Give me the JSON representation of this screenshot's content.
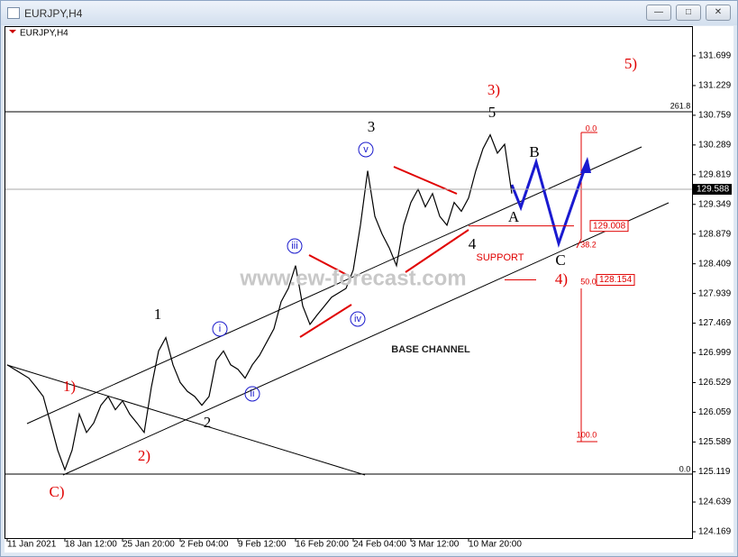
{
  "window_title": "EURJPY,H4",
  "chart_data": {
    "type": "line",
    "symbol": "EURJPY,H4",
    "color": "#000000",
    "categories": [
      "11 Jan 2021",
      null,
      null,
      null,
      null,
      null,
      null,
      null,
      "18 Jan 12:00",
      null,
      null,
      null,
      null,
      null,
      null,
      null,
      "25 Jan 20:00",
      null,
      null,
      null,
      null,
      null,
      null,
      null,
      "2 Feb 04:00",
      null,
      null,
      null,
      null,
      null,
      null,
      null,
      "9 Feb 12:00",
      null,
      null,
      null,
      null,
      null,
      null,
      null,
      "16 Feb 20:00",
      null,
      null,
      null,
      null,
      null,
      null,
      null,
      "24 Feb 04:00",
      null,
      null,
      null,
      null,
      null,
      null,
      null,
      "3 Mar 12:00",
      null,
      null,
      null,
      null,
      null,
      null,
      null,
      "10 Mar 20:00",
      null,
      null,
      null,
      null,
      null,
      null,
      null,
      null,
      null,
      null,
      null,
      null,
      null,
      null,
      null,
      null,
      null,
      null,
      null,
      null,
      null,
      null,
      null,
      null,
      null,
      null,
      null,
      null,
      null,
      null,
      null
    ],
    "values": [
      126.81,
      126.74,
      126.67,
      126.6,
      126.46,
      126.31,
      125.89,
      125.46,
      125.15,
      125.46,
      126.03,
      125.74,
      125.89,
      126.17,
      126.31,
      126.1,
      126.24,
      126.03,
      125.89,
      125.74,
      126.46,
      127.03,
      127.24,
      126.81,
      126.53,
      126.39,
      126.31,
      126.17,
      126.31,
      126.88,
      127.03,
      126.81,
      126.74,
      126.6,
      126.81,
      126.96,
      127.17,
      127.38,
      127.81,
      128.02,
      128.38,
      127.74,
      127.45,
      127.6,
      127.74,
      127.88,
      127.95,
      128.02,
      128.31,
      129.02,
      129.88,
      129.16,
      128.88,
      128.66,
      128.38,
      129.02,
      129.38,
      129.59,
      129.31,
      129.52,
      129.16,
      129.02,
      129.38,
      129.24,
      129.45,
      129.88,
      130.23,
      130.45,
      130.16,
      130.3,
      129.52,
      null,
      null,
      null,
      null,
      null,
      null,
      null,
      null,
      null,
      null,
      null,
      null,
      null,
      null,
      null,
      null,
      null,
      null,
      null,
      null,
      null,
      null,
      null,
      null,
      null
    ],
    "ylim": [
      124.069,
      132.155
    ],
    "yticks": [
      131.699,
      131.229,
      130.759,
      130.289,
      129.819,
      129.349,
      128.879,
      128.409,
      127.939,
      127.469,
      126.999,
      126.529,
      126.059,
      125.589,
      125.119,
      124.639,
      124.169
    ],
    "last_price": 129.588,
    "levels": [
      {
        "value": 129.008
      },
      {
        "value": 128.154
      }
    ],
    "annotations": [
      {
        "text": "1"
      },
      {
        "text": "2"
      },
      {
        "text": "3"
      },
      {
        "text": "4"
      },
      {
        "text": "5"
      },
      {
        "text": "1)"
      },
      {
        "text": "2)"
      },
      {
        "text": "3)"
      },
      {
        "text": "4)"
      },
      {
        "text": "5)"
      },
      {
        "text": "C)"
      },
      {
        "text": "A"
      },
      {
        "text": "B"
      },
      {
        "text": "C"
      },
      {
        "text": "i"
      },
      {
        "text": "ii"
      },
      {
        "text": "iii"
      },
      {
        "text": "iv"
      },
      {
        "text": "v"
      },
      {
        "text": "SUPPORT"
      },
      {
        "text": "BASE CHANNEL"
      },
      {
        "text": "www.ew-forecast.com"
      },
      {
        "text": "261.8"
      },
      {
        "text": "0.0"
      },
      {
        "text": "0.0"
      },
      {
        "text": "38.2"
      },
      {
        "text": "50.0"
      },
      {
        "text": "100.0"
      }
    ]
  }
}
